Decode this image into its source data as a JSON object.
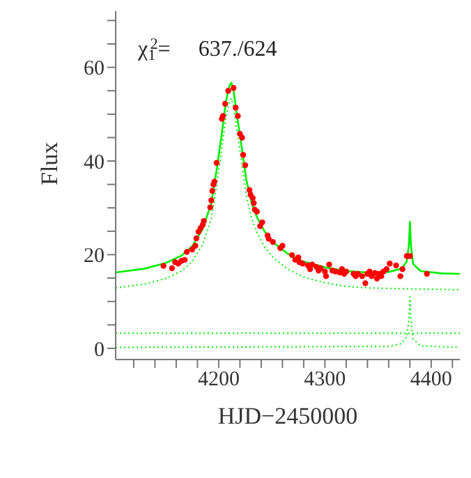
{
  "chart_data": {
    "type": "line",
    "xlabel": "HJD−2450000",
    "ylabel": "Flux",
    "annotations": [
      "χ$_{1}$$^{2}$=     637./624"
    ],
    "xlim": [
      4103,
      4427
    ],
    "ylim": [
      -2.4,
      72
    ],
    "xticks": [
      {
        "value": 4120,
        "label": null
      },
      {
        "value": 4140,
        "label": null
      },
      {
        "value": 4160,
        "label": null
      },
      {
        "value": 4180,
        "label": null
      },
      4200,
      {
        "value": 4220,
        "label": null
      },
      {
        "value": 4240,
        "label": null
      },
      {
        "value": 4260,
        "label": null
      },
      {
        "value": 4280,
        "label": null
      },
      4300,
      {
        "value": 4320,
        "label": null
      },
      {
        "value": 4340,
        "label": null
      },
      {
        "value": 4360,
        "label": null
      },
      {
        "value": 4380,
        "label": null
      },
      4400,
      {
        "value": 4420,
        "label": null
      }
    ],
    "yticks": [
      0,
      {
        "value": 5,
        "label": null
      },
      {
        "value": 10,
        "label": null
      },
      {
        "value": 15,
        "label": null
      },
      20,
      {
        "value": 25,
        "label": null
      },
      {
        "value": 30,
        "label": null
      },
      {
        "value": 35,
        "label": null
      },
      40,
      {
        "value": 45,
        "label": null
      },
      {
        "value": 50,
        "label": null
      },
      {
        "value": 55,
        "label": null
      },
      60,
      {
        "value": 65,
        "label": null
      },
      {
        "value": 70,
        "label": null
      }
    ],
    "grid": false,
    "series": [
      {
        "color": "#00ee00",
        "line_style": "solid",
        "marker": "none",
        "x": [
          4103,
          4130,
          4150,
          4165,
          4175,
          4185,
          4193,
          4198,
          4203,
          4207,
          4210,
          4212,
          4214,
          4217,
          4221,
          4226,
          4231,
          4236,
          4243,
          4252,
          4265,
          4280,
          4300,
          4320,
          4340,
          4360,
          4372,
          4377,
          4379,
          4380,
          4381,
          4383,
          4390,
          4410,
          4427
        ],
        "values": [
          16.2,
          17.0,
          18.2,
          19.8,
          21.8,
          25.5,
          31,
          38,
          46,
          53,
          56,
          56.7,
          55,
          50,
          44,
          36,
          31,
          28,
          25,
          22.5,
          20.2,
          18.5,
          17.3,
          16.5,
          16.2,
          16.3,
          17.0,
          18.5,
          22,
          27,
          22,
          18,
          16.5,
          16.0,
          15.9
        ]
      },
      {
        "type": "line",
        "color": "#00ee00",
        "line_style": "dotted",
        "marker": "none",
        "x": [
          4103,
          4130,
          4150,
          4165,
          4175,
          4185,
          4193,
          4198,
          4203,
          4207,
          4210,
          4212,
          4214,
          4217,
          4221,
          4226,
          4231,
          4236,
          4243,
          4252,
          4265,
          4280,
          4300,
          4320,
          4340,
          4360,
          4380,
          4427
        ],
        "values": [
          12.9,
          13.7,
          14.9,
          16.5,
          18.5,
          22.2,
          27.7,
          34.7,
          42.7,
          49.7,
          52.7,
          53.4,
          51.7,
          46.7,
          40.7,
          32.7,
          27.7,
          24.7,
          21.7,
          19.2,
          16.9,
          15.2,
          14,
          13.2,
          12.9,
          12.8,
          12.7,
          12.5
        ]
      },
      {
        "type": "line",
        "color": "#00ee00",
        "line_style": "dotted",
        "marker": "none",
        "x": [
          4103,
          4360,
          4372,
          4377,
          4379,
          4380,
          4381,
          4383,
          4390,
          4427
        ],
        "values": [
          0.2,
          0.4,
          1.0,
          2.5,
          6,
          11,
          6,
          2,
          0.5,
          0.2
        ]
      },
      {
        "type": "line",
        "color": "#00ee00",
        "line_style": "dotted",
        "marker": "none",
        "x": [
          4103,
          4427
        ],
        "values": [
          3.2,
          3.2
        ]
      },
      {
        "type": "scatter",
        "color": "#ff0000",
        "marker": "circle",
        "x": [
          4148,
          4156,
          4159,
          4162,
          4165,
          4168,
          4170,
          4175,
          4178,
          4179,
          4181,
          4183,
          4185,
          4186,
          4192,
          4193,
          4194,
          4195,
          4196,
          4198,
          4203,
          4204,
          4206,
          4209,
          4214,
          4216,
          4218,
          4220,
          4222,
          4223,
          4225,
          4229,
          4230,
          4232,
          4233,
          4234,
          4236,
          4239,
          4241,
          4246,
          4247,
          4251,
          4258,
          4260,
          4269,
          4272,
          4275,
          4276,
          4279,
          4284,
          4286,
          4288,
          4292,
          4294,
          4296,
          4300,
          4301,
          4304,
          4307,
          4310,
          4314,
          4316,
          4318,
          4320,
          4327,
          4329,
          4331,
          4335,
          4338,
          4340,
          4342,
          4344,
          4347,
          4349,
          4351,
          4353,
          4355,
          4358,
          4361,
          4367,
          4371,
          4373,
          4377,
          4380,
          4396
        ],
        "values": [
          17.6,
          17.1,
          18.4,
          18.1,
          18.7,
          18.9,
          20.6,
          21.1,
          21.9,
          23.5,
          24.9,
          25.7,
          26.4,
          27.2,
          30.1,
          31.6,
          33.6,
          35.0,
          35.6,
          39.6,
          49.0,
          49.6,
          52.2,
          55.0,
          55.6,
          51.4,
          49.6,
          45.8,
          45.0,
          41.3,
          39.1,
          33.8,
          32.8,
          32.1,
          31.0,
          29.6,
          29.2,
          26.1,
          26.9,
          24.1,
          23.4,
          22.7,
          21.4,
          21.9,
          19.9,
          18.9,
          19.4,
          18.4,
          18.1,
          17.7,
          16.9,
          17.9,
          17.4,
          16.6,
          17.1,
          16.4,
          15.4,
          17.9,
          16.6,
          16.4,
          16.2,
          16.9,
          15.9,
          16.4,
          15.9,
          15.4,
          15.9,
          15.4,
          13.9,
          15.9,
          16.4,
          15.4,
          16.1,
          14.9,
          15.9,
          15.4,
          16.4,
          16.9,
          18.1,
          17.7,
          15.4,
          16.9,
          19.7,
          19.7,
          15.9
        ]
      }
    ]
  }
}
